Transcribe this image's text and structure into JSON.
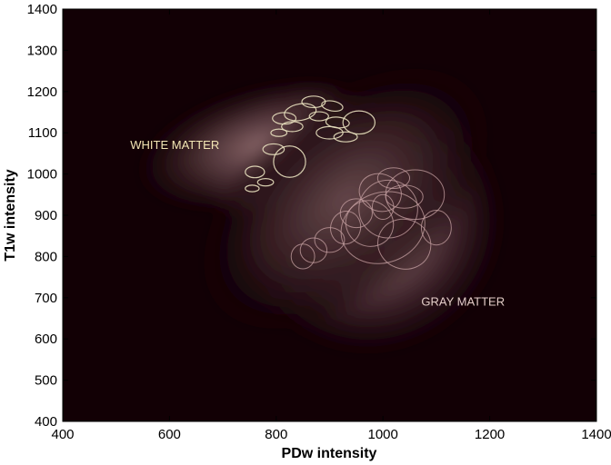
{
  "chart_data": {
    "type": "heatmap",
    "title": "",
    "xlabel": "PDw intensity",
    "ylabel": "T1w intensity",
    "xlim": [
      400,
      1400
    ],
    "ylim": [
      400,
      1400
    ],
    "xticks": [
      "400",
      "600",
      "800",
      "1000",
      "1200",
      "1400"
    ],
    "yticks": [
      "400",
      "500",
      "600",
      "700",
      "800",
      "900",
      "1000",
      "1100",
      "1200",
      "1300",
      "1400"
    ],
    "grid": false,
    "annotations": [
      {
        "text": "WHITE MATTER",
        "x": 610,
        "y": 1070,
        "color": "#f3e6b4"
      },
      {
        "text": "GRAY MATTER",
        "x": 1150,
        "y": 690,
        "color": "#e3cdc8"
      }
    ],
    "density_components": [
      {
        "cx": 815,
        "cy": 1055,
        "sx": 65,
        "sy": 55,
        "angle": -30,
        "weight": 1.0
      },
      {
        "cx": 770,
        "cy": 1070,
        "sx": 90,
        "sy": 55,
        "angle": -15,
        "weight": 0.35
      },
      {
        "cx": 985,
        "cy": 870,
        "sx": 95,
        "sy": 115,
        "angle": -35,
        "weight": 0.42
      },
      {
        "cx": 930,
        "cy": 940,
        "sx": 120,
        "sy": 90,
        "angle": -40,
        "weight": 0.25
      }
    ],
    "density_colors": {
      "background": "#120005",
      "gray_matter": "#d4a5a7",
      "white_matter": "#fbf6b6"
    },
    "ellipses": [
      {
        "cx": 870,
        "cy": 1175,
        "rx": 22,
        "ry": 14,
        "angle": 0,
        "group": "white"
      },
      {
        "cx": 905,
        "cy": 1165,
        "rx": 20,
        "ry": 12,
        "angle": 10,
        "group": "white"
      },
      {
        "cx": 845,
        "cy": 1150,
        "rx": 30,
        "ry": 20,
        "angle": -10,
        "group": "white"
      },
      {
        "cx": 880,
        "cy": 1140,
        "rx": 18,
        "ry": 11,
        "angle": 0,
        "group": "white"
      },
      {
        "cx": 915,
        "cy": 1125,
        "rx": 22,
        "ry": 13,
        "angle": 5,
        "group": "white"
      },
      {
        "cx": 955,
        "cy": 1125,
        "rx": 30,
        "ry": 28,
        "angle": 0,
        "group": "white"
      },
      {
        "cx": 900,
        "cy": 1100,
        "rx": 25,
        "ry": 15,
        "angle": 0,
        "group": "white"
      },
      {
        "cx": 930,
        "cy": 1090,
        "rx": 22,
        "ry": 12,
        "angle": 0,
        "group": "white"
      },
      {
        "cx": 815,
        "cy": 1135,
        "rx": 22,
        "ry": 14,
        "angle": 0,
        "group": "white"
      },
      {
        "cx": 830,
        "cy": 1115,
        "rx": 20,
        "ry": 12,
        "angle": 0,
        "group": "white"
      },
      {
        "cx": 805,
        "cy": 1100,
        "rx": 15,
        "ry": 9,
        "angle": 0,
        "group": "white"
      },
      {
        "cx": 795,
        "cy": 1060,
        "rx": 20,
        "ry": 13,
        "angle": 0,
        "group": "white"
      },
      {
        "cx": 825,
        "cy": 1030,
        "rx": 30,
        "ry": 38,
        "angle": 0,
        "group": "white"
      },
      {
        "cx": 760,
        "cy": 1005,
        "rx": 18,
        "ry": 14,
        "angle": 0,
        "group": "white"
      },
      {
        "cx": 780,
        "cy": 980,
        "rx": 15,
        "ry": 9,
        "angle": 0,
        "group": "white"
      },
      {
        "cx": 755,
        "cy": 965,
        "rx": 13,
        "ry": 8,
        "angle": 0,
        "group": "white"
      },
      {
        "cx": 1020,
        "cy": 990,
        "rx": 30,
        "ry": 25,
        "angle": 0,
        "group": "gray"
      },
      {
        "cx": 995,
        "cy": 955,
        "rx": 40,
        "ry": 45,
        "angle": 20,
        "group": "gray"
      },
      {
        "cx": 1040,
        "cy": 945,
        "rx": 35,
        "ry": 28,
        "angle": 0,
        "group": "gray"
      },
      {
        "cx": 1060,
        "cy": 950,
        "rx": 55,
        "ry": 60,
        "angle": 0,
        "group": "gray"
      },
      {
        "cx": 1000,
        "cy": 920,
        "rx": 20,
        "ry": 30,
        "angle": 0,
        "group": "gray"
      },
      {
        "cx": 1010,
        "cy": 915,
        "rx": 55,
        "ry": 70,
        "angle": 0,
        "group": "gray"
      },
      {
        "cx": 975,
        "cy": 880,
        "rx": 45,
        "ry": 55,
        "angle": 25,
        "group": "gray"
      },
      {
        "cx": 950,
        "cy": 905,
        "rx": 30,
        "ry": 35,
        "angle": 0,
        "group": "gray"
      },
      {
        "cx": 930,
        "cy": 870,
        "rx": 28,
        "ry": 40,
        "angle": 15,
        "group": "gray"
      },
      {
        "cx": 1000,
        "cy": 870,
        "rx": 80,
        "ry": 85,
        "angle": -20,
        "group": "gray"
      },
      {
        "cx": 1040,
        "cy": 830,
        "rx": 50,
        "ry": 60,
        "angle": 20,
        "group": "gray"
      },
      {
        "cx": 1100,
        "cy": 870,
        "rx": 28,
        "ry": 42,
        "angle": 0,
        "group": "gray"
      },
      {
        "cx": 900,
        "cy": 840,
        "rx": 28,
        "ry": 30,
        "angle": 0,
        "group": "gray"
      },
      {
        "cx": 870,
        "cy": 815,
        "rx": 25,
        "ry": 30,
        "angle": 0,
        "group": "gray"
      },
      {
        "cx": 850,
        "cy": 800,
        "rx": 22,
        "ry": 30,
        "angle": 0,
        "group": "gray"
      }
    ]
  }
}
